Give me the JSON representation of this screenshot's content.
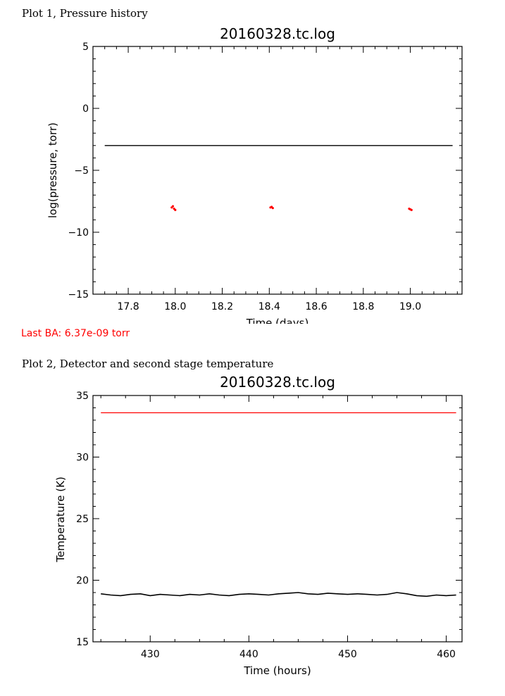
{
  "page": {
    "plot1_heading": "Plot 1, Pressure history",
    "plot2_heading": "Plot 2, Detector and second stage temperature",
    "last_ba": "Last BA: 6.37e-09 torr"
  },
  "colors": {
    "axes": "#000000",
    "trace_black": "#000000",
    "trace_red": "#ff0000"
  },
  "chart_data": [
    {
      "type": "line",
      "title": "20160328.tc.log",
      "xlabel": "Time (days)",
      "ylabel": "log(pressure, torr)",
      "xlim": [
        17.65,
        19.22
      ],
      "ylim": [
        -15,
        5
      ],
      "xticks": [
        "17.8",
        "18.0",
        "18.2",
        "18.4",
        "18.6",
        "18.8",
        "19.0"
      ],
      "yticks": [
        "5",
        "0",
        "−5",
        "−10",
        "−15"
      ],
      "grid": false,
      "series": [
        {
          "color": "#000000",
          "x": [
            17.7,
            19.18
          ],
          "y": [
            -3.0,
            -3.0
          ]
        },
        {
          "color": "#ff0000",
          "x": [
            17.985,
            17.99,
            17.995,
            18.0,
            18.405,
            18.41,
            18.415,
            18.995,
            19.0,
            19.005
          ],
          "y": [
            -8.0,
            -7.9,
            -8.1,
            -8.2,
            -8.0,
            -7.95,
            -8.05,
            -8.1,
            -8.15,
            -8.2
          ]
        }
      ]
    },
    {
      "type": "line",
      "title": "20160328.tc.log",
      "xlabel": "Time (hours)",
      "ylabel": "Temperature (K)",
      "xlim": [
        424.2,
        461.6
      ],
      "ylim": [
        15,
        35
      ],
      "xticks": [
        "430",
        "440",
        "450",
        "460"
      ],
      "yticks": [
        "35",
        "30",
        "25",
        "20",
        "15"
      ],
      "grid": false,
      "series": [
        {
          "color": "#ff0000",
          "x": [
            425,
            461
          ],
          "y": [
            33.6,
            33.6
          ]
        },
        {
          "color": "#000000",
          "x": [
            425,
            426,
            427,
            428,
            429,
            430,
            431,
            432,
            433,
            434,
            435,
            436,
            437,
            438,
            439,
            440,
            441,
            442,
            443,
            444,
            445,
            446,
            447,
            448,
            449,
            450,
            451,
            452,
            453,
            454,
            455,
            456,
            457,
            458,
            459,
            460,
            461
          ],
          "y": [
            18.9,
            18.8,
            18.75,
            18.85,
            18.9,
            18.75,
            18.85,
            18.8,
            18.75,
            18.85,
            18.8,
            18.9,
            18.8,
            18.75,
            18.85,
            18.9,
            18.85,
            18.8,
            18.9,
            18.95,
            19.0,
            18.9,
            18.85,
            18.95,
            18.9,
            18.85,
            18.9,
            18.85,
            18.8,
            18.85,
            19.0,
            18.9,
            18.75,
            18.7,
            18.8,
            18.75,
            18.8
          ]
        }
      ]
    }
  ]
}
